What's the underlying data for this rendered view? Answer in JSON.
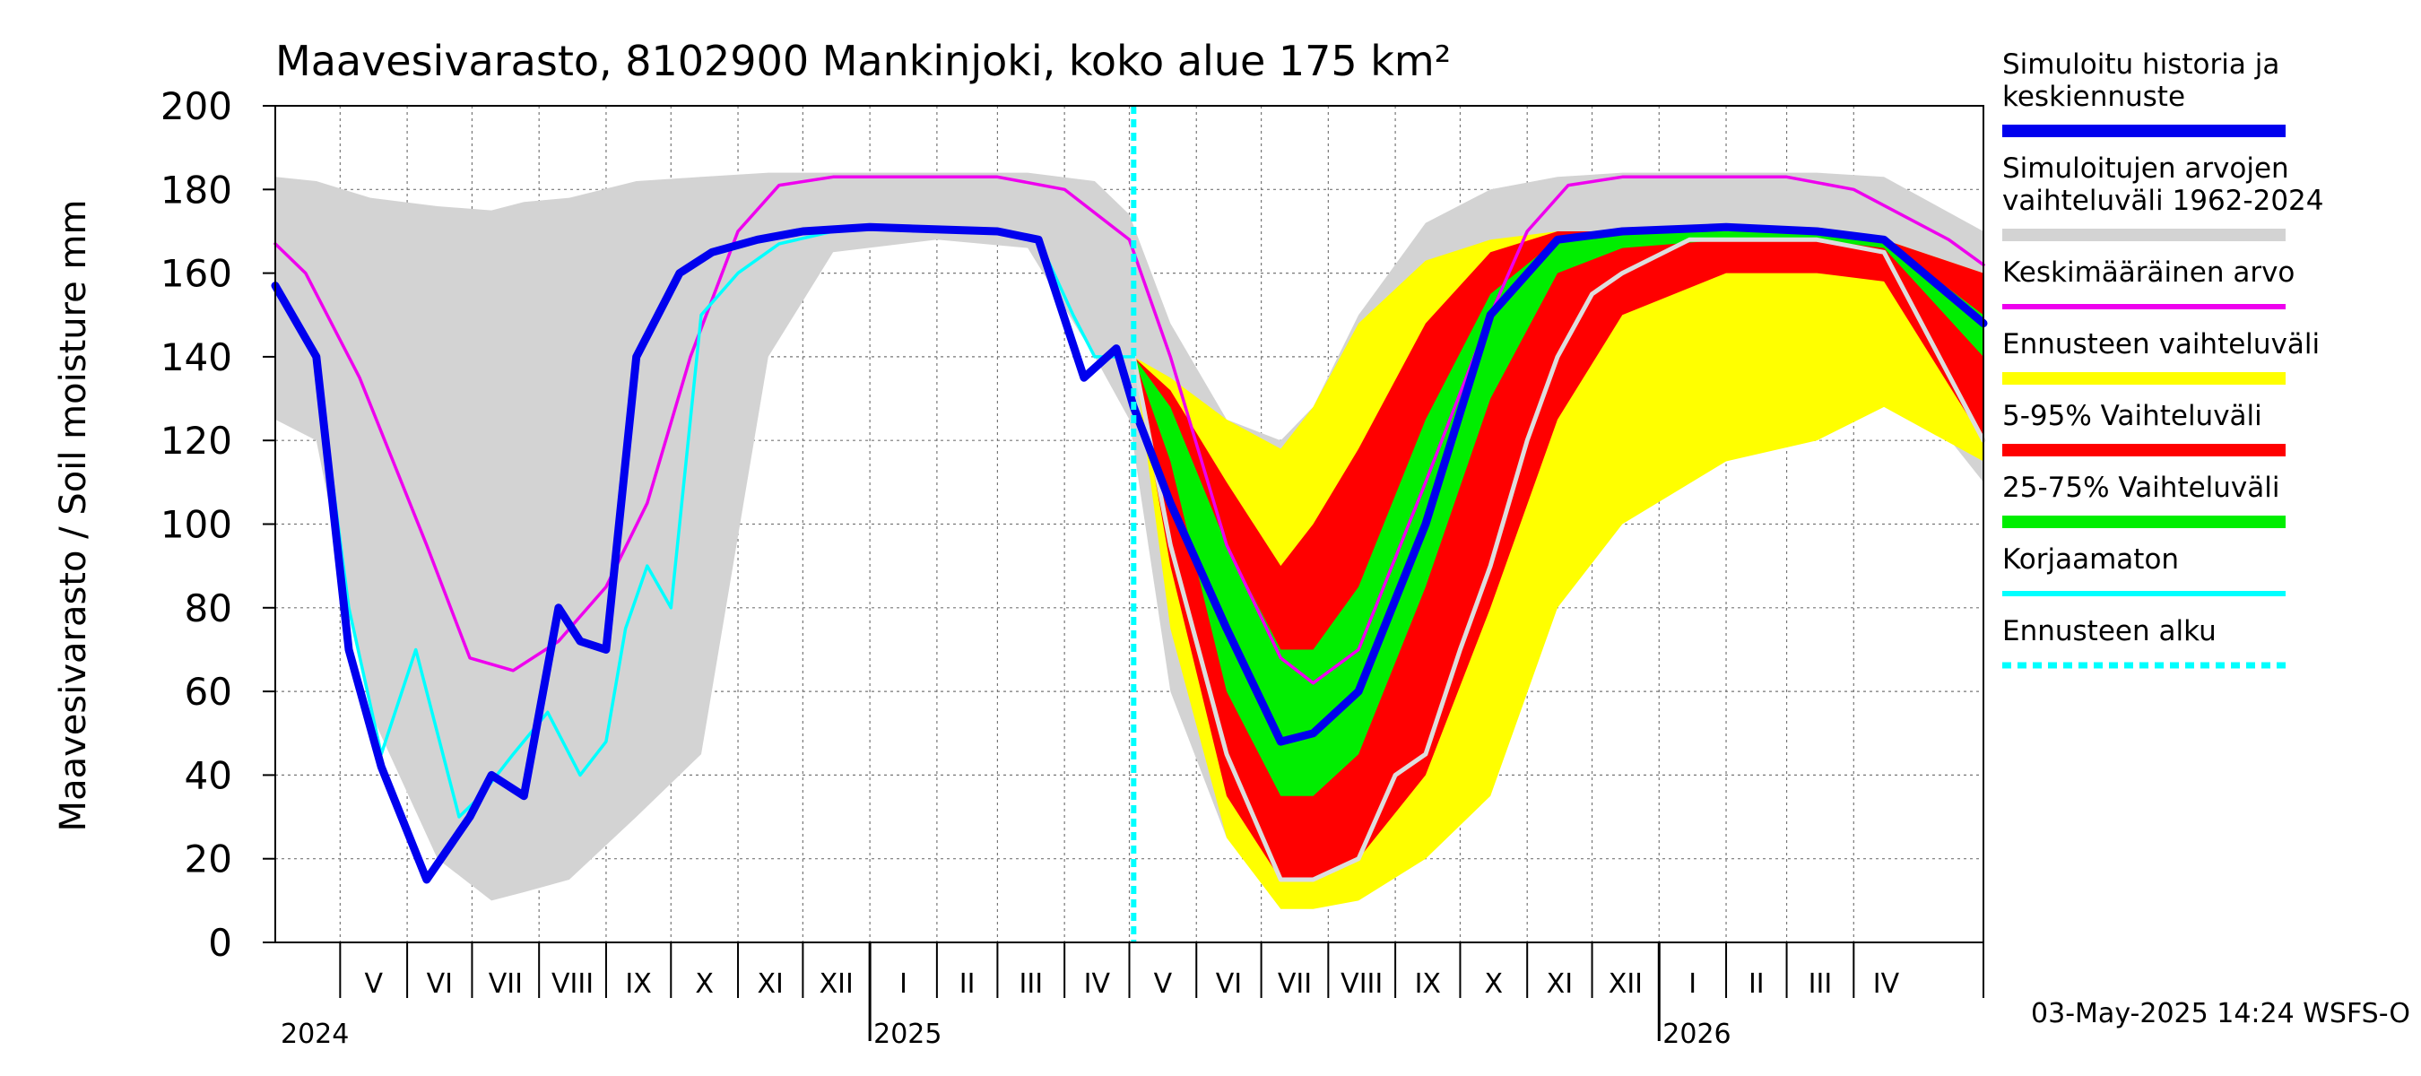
{
  "chart_data": {
    "type": "area",
    "title": "Maavesivarasto, 8102900 Mankinjoki, koko alue 175 km²",
    "ylabel": "Maavesivarasto / Soil moisture   mm",
    "ylim": [
      0,
      200
    ],
    "yticks": [
      0,
      20,
      40,
      60,
      80,
      100,
      120,
      140,
      160,
      180,
      200
    ],
    "grid": true,
    "legend_position": "right",
    "x_start": "2024-04-01",
    "x_end": "2026-05-31",
    "month_labels": [
      {
        "label": "V",
        "month": "2024-05"
      },
      {
        "label": "VI",
        "month": "2024-06"
      },
      {
        "label": "VII",
        "month": "2024-07"
      },
      {
        "label": "VIII",
        "month": "2024-08"
      },
      {
        "label": "IX",
        "month": "2024-09"
      },
      {
        "label": "X",
        "month": "2024-10"
      },
      {
        "label": "XI",
        "month": "2024-11"
      },
      {
        "label": "XII",
        "month": "2024-12"
      },
      {
        "label": "I",
        "month": "2025-01"
      },
      {
        "label": "II",
        "month": "2025-02"
      },
      {
        "label": "III",
        "month": "2025-03"
      },
      {
        "label": "IV",
        "month": "2025-04"
      },
      {
        "label": "V",
        "month": "2025-05"
      },
      {
        "label": "VI",
        "month": "2025-06"
      },
      {
        "label": "VII",
        "month": "2025-07"
      },
      {
        "label": "VIII",
        "month": "2025-08"
      },
      {
        "label": "IX",
        "month": "2025-09"
      },
      {
        "label": "X",
        "month": "2025-10"
      },
      {
        "label": "XI",
        "month": "2025-11"
      },
      {
        "label": "XII",
        "month": "2025-12"
      },
      {
        "label": "I",
        "month": "2026-01"
      },
      {
        "label": "II",
        "month": "2026-02"
      },
      {
        "label": "III",
        "month": "2026-03"
      },
      {
        "label": "IV",
        "month": "2026-04"
      }
    ],
    "year_labels": [
      {
        "label": "2024",
        "date": "2024-04-01"
      },
      {
        "label": "2025",
        "date": "2025-01-01"
      },
      {
        "label": "2026",
        "date": "2026-01-01"
      }
    ],
    "forecast_start": "2025-05-03",
    "footer": "03-May-2025 14:24 WSFS-O",
    "series": [
      {
        "key": "hist_range",
        "name": "Simuloitujen arvojen vaihteluväli 1962-2024",
        "color": "#d3d3d3",
        "x": [
          "2024-04-01",
          "2024-04-20",
          "2024-05-15",
          "2024-06-15",
          "2024-07-10",
          "2024-07-25",
          "2024-08-15",
          "2024-09-15",
          "2024-10-15",
          "2024-11-15",
          "2024-12-15",
          "2025-02-01",
          "2025-03-15",
          "2025-04-15",
          "2025-05-01",
          "2025-05-20",
          "2025-06-15",
          "2025-07-10",
          "2025-07-25",
          "2025-08-15",
          "2025-09-15",
          "2025-10-15",
          "2025-11-15",
          "2025-12-15",
          "2026-02-01",
          "2026-03-15",
          "2026-04-15",
          "2026-05-31"
        ],
        "upper": [
          183,
          182,
          178,
          176,
          175,
          177,
          178,
          182,
          183,
          184,
          184,
          184,
          184,
          182,
          174,
          148,
          125,
          120,
          128,
          150,
          172,
          180,
          183,
          184,
          184,
          184,
          183,
          170
        ],
        "lower": [
          125,
          120,
          55,
          20,
          10,
          12,
          15,
          30,
          45,
          140,
          165,
          168,
          166,
          140,
          125,
          60,
          25,
          15,
          15,
          25,
          60,
          110,
          145,
          165,
          168,
          166,
          140,
          110
        ]
      },
      {
        "key": "fc_full",
        "name": "Ennusteen vaihteluväli",
        "color": "#ffff00",
        "x": [
          "2025-05-03",
          "2025-05-20",
          "2025-06-15",
          "2025-07-10",
          "2025-07-25",
          "2025-08-15",
          "2025-09-15",
          "2025-10-15",
          "2025-11-15",
          "2025-12-15",
          "2026-02-01",
          "2026-03-15",
          "2026-04-15",
          "2026-05-31"
        ],
        "upper": [
          140,
          135,
          125,
          118,
          128,
          148,
          163,
          168,
          170,
          170,
          170,
          170,
          168,
          160
        ],
        "lower": [
          140,
          75,
          25,
          8,
          8,
          10,
          20,
          35,
          80,
          100,
          115,
          120,
          128,
          115
        ]
      },
      {
        "key": "fc_5_95",
        "name": "5-95% Vaihteluväli",
        "color": "#ff0000",
        "x": [
          "2025-05-03",
          "2025-05-20",
          "2025-06-15",
          "2025-07-10",
          "2025-07-25",
          "2025-08-15",
          "2025-09-15",
          "2025-10-15",
          "2025-11-15",
          "2025-12-15",
          "2026-02-01",
          "2026-03-15",
          "2026-04-15",
          "2026-05-31"
        ],
        "upper": [
          140,
          132,
          110,
          90,
          100,
          118,
          148,
          165,
          170,
          170,
          170,
          170,
          168,
          160
        ],
        "lower": [
          140,
          90,
          35,
          15,
          15,
          20,
          40,
          80,
          125,
          150,
          160,
          160,
          158,
          120
        ]
      },
      {
        "key": "fc_25_75",
        "name": "25-75% Vaihteluväli",
        "color": "#00ee00",
        "x": [
          "2025-05-03",
          "2025-05-20",
          "2025-06-15",
          "2025-07-10",
          "2025-07-25",
          "2025-08-15",
          "2025-09-15",
          "2025-10-15",
          "2025-11-15",
          "2025-12-15",
          "2026-02-01",
          "2026-03-15",
          "2026-04-15",
          "2026-05-31"
        ],
        "upper": [
          140,
          128,
          95,
          70,
          70,
          85,
          125,
          155,
          168,
          170,
          170,
          170,
          168,
          150
        ],
        "lower": [
          140,
          115,
          60,
          35,
          35,
          45,
          85,
          130,
          160,
          166,
          168,
          168,
          166,
          140
        ]
      },
      {
        "key": "corrected",
        "name": "Simuloitu historia ja keskiennuste",
        "color": "#0000ee",
        "x": [
          "2024-04-01",
          "2024-04-20",
          "2024-05-05",
          "2024-05-20",
          "2024-06-10",
          "2024-06-30",
          "2024-07-10",
          "2024-07-25",
          "2024-08-10",
          "2024-08-20",
          "2024-09-01",
          "2024-09-15",
          "2024-09-25",
          "2024-10-05",
          "2024-10-20",
          "2024-11-10",
          "2024-12-01",
          "2025-01-01",
          "2025-03-01",
          "2025-03-20",
          "2025-04-10",
          "2025-04-25",
          "2025-05-03",
          "2025-05-20",
          "2025-06-15",
          "2025-07-10",
          "2025-07-25",
          "2025-08-15",
          "2025-09-15",
          "2025-10-15",
          "2025-11-15",
          "2025-12-15",
          "2026-02-01",
          "2026-03-15",
          "2026-04-15",
          "2026-05-31"
        ],
        "values": [
          157,
          140,
          70,
          42,
          15,
          30,
          40,
          35,
          80,
          72,
          70,
          140,
          150,
          160,
          165,
          168,
          170,
          171,
          170,
          168,
          135,
          142,
          128,
          105,
          75,
          48,
          50,
          60,
          100,
          150,
          168,
          170,
          171,
          170,
          168,
          148
        ]
      },
      {
        "key": "mean",
        "name": "Keskimääräinen arvo",
        "color": "#ee00ee",
        "x": [
          "2024-04-01",
          "2024-04-15",
          "2024-05-10",
          "2024-06-10",
          "2024-06-30",
          "2024-07-20",
          "2024-08-10",
          "2024-09-01",
          "2024-09-20",
          "2024-10-10",
          "2024-11-01",
          "2024-11-20",
          "2024-12-15",
          "2025-03-01",
          "2025-04-01",
          "2025-05-01",
          "2025-05-20",
          "2025-06-15",
          "2025-07-10",
          "2025-07-25",
          "2025-08-15",
          "2025-09-15",
          "2025-10-15",
          "2025-11-01",
          "2025-11-20",
          "2025-12-15",
          "2026-03-01",
          "2026-04-01",
          "2026-05-15",
          "2026-05-31"
        ],
        "values": [
          167,
          160,
          135,
          95,
          68,
          65,
          72,
          85,
          105,
          140,
          170,
          181,
          183,
          183,
          180,
          168,
          140,
          95,
          68,
          62,
          70,
          110,
          150,
          170,
          181,
          183,
          183,
          180,
          168,
          162
        ]
      },
      {
        "key": "uncorrected",
        "name": "Korjaamaton",
        "color": "#00ffff",
        "x": [
          "2024-04-01",
          "2024-04-20",
          "2024-05-05",
          "2024-05-20",
          "2024-06-05",
          "2024-06-15",
          "2024-06-25",
          "2024-07-05",
          "2024-07-20",
          "2024-08-05",
          "2024-08-20",
          "2024-09-01",
          "2024-09-10",
          "2024-09-20",
          "2024-10-01",
          "2024-10-15",
          "2024-11-01",
          "2024-11-20",
          "2024-12-15",
          "2025-01-01",
          "2025-03-01",
          "2025-03-20",
          "2025-04-05",
          "2025-04-15",
          "2025-04-25",
          "2025-05-03"
        ],
        "values": [
          157,
          140,
          80,
          45,
          70,
          50,
          30,
          35,
          45,
          55,
          40,
          48,
          75,
          90,
          80,
          150,
          160,
          167,
          170,
          171,
          170,
          168,
          150,
          140,
          140,
          140
        ]
      },
      {
        "key": "lowest_member",
        "name": "",
        "color": "#dddddd",
        "x": [
          "2025-05-03",
          "2025-05-20",
          "2025-06-15",
          "2025-07-10",
          "2025-07-25",
          "2025-08-15",
          "2025-09-01",
          "2025-09-15",
          "2025-10-01",
          "2025-10-15",
          "2025-11-01",
          "2025-11-15",
          "2025-12-01",
          "2025-12-15",
          "2026-01-15",
          "2026-02-15",
          "2026-03-15",
          "2026-04-15",
          "2026-05-31"
        ],
        "values": [
          140,
          95,
          45,
          15,
          15,
          20,
          40,
          45,
          70,
          90,
          120,
          140,
          155,
          160,
          168,
          168,
          168,
          165,
          120
        ]
      }
    ]
  },
  "legend": [
    {
      "key": "corrected",
      "label": "Simuloitu historia ja keskiennuste",
      "color": "#0000ee",
      "style": "thick"
    },
    {
      "key": "hist_range",
      "label": "Simuloitujen arvojen vaihteluväli 1962-2024",
      "color": "#d3d3d3",
      "style": "thick"
    },
    {
      "key": "mean",
      "label": "Keskimääräinen arvo",
      "color": "#ee00ee",
      "style": "thin"
    },
    {
      "key": "fc_full",
      "label": "Ennusteen vaihteluväli",
      "color": "#ffff00",
      "style": "thick"
    },
    {
      "key": "fc_5_95",
      "label": "5-95% Vaihteluväli",
      "color": "#ff0000",
      "style": "thick"
    },
    {
      "key": "fc_25_75",
      "label": "25-75% Vaihteluväli",
      "color": "#00ee00",
      "style": "thick"
    },
    {
      "key": "uncorrected",
      "label": "Korjaamaton",
      "color": "#00ffff",
      "style": "thin"
    },
    {
      "key": "forecast_start",
      "label": "Ennusteen alku",
      "color": "#00ffff",
      "style": "dashed"
    }
  ]
}
